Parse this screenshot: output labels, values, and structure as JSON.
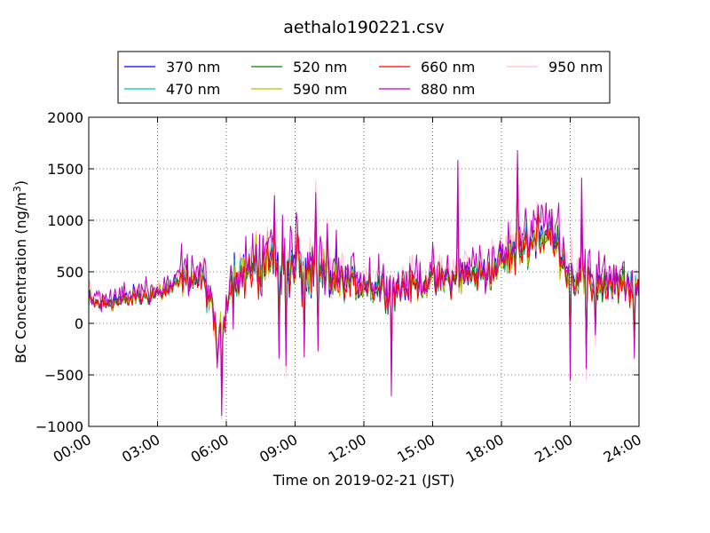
{
  "chart_data": {
    "type": "line",
    "title": "aethalo190221.csv",
    "xlabel": "Time on 2019-02-21 (JST)",
    "ylabel_main": "BC Concentration (ng/m",
    "ylabel_sup": "3",
    "ylabel_tail": ")",
    "x_range_hours": [
      0,
      24
    ],
    "ylim": [
      -1000,
      2000
    ],
    "x_ticks": [
      {
        "h": 0,
        "label": "00:00"
      },
      {
        "h": 3,
        "label": "03:00"
      },
      {
        "h": 6,
        "label": "06:00"
      },
      {
        "h": 9,
        "label": "09:00"
      },
      {
        "h": 12,
        "label": "12:00"
      },
      {
        "h": 15,
        "label": "15:00"
      },
      {
        "h": 18,
        "label": "18:00"
      },
      {
        "h": 21,
        "label": "21:00"
      },
      {
        "h": 24,
        "label": "24:00"
      }
    ],
    "y_ticks": [
      {
        "v": 2000,
        "label": "2000"
      },
      {
        "v": 1500,
        "label": "1500"
      },
      {
        "v": 1000,
        "label": "1000"
      },
      {
        "v": 500,
        "label": "500"
      },
      {
        "v": 0,
        "label": "0"
      },
      {
        "v": -500,
        "label": "−500"
      },
      {
        "v": -1000,
        "label": "−1000"
      }
    ],
    "grid": true,
    "legend_position": "top-center",
    "series": [
      {
        "name": "370 nm",
        "color": "#0000ff"
      },
      {
        "name": "470 nm",
        "color": "#00bfbf"
      },
      {
        "name": "520 nm",
        "color": "#008000"
      },
      {
        "name": "590 nm",
        "color": "#bfbf00"
      },
      {
        "name": "660 nm",
        "color": "#ff0000"
      },
      {
        "name": "880 nm",
        "color": "#bf00bf"
      },
      {
        "name": "950 nm",
        "color": "#ffc0cb"
      }
    ],
    "base_profile": [
      [
        0.0,
        220
      ],
      [
        0.5,
        200
      ],
      [
        1.0,
        210
      ],
      [
        1.5,
        230
      ],
      [
        2.0,
        250
      ],
      [
        2.5,
        270
      ],
      [
        3.0,
        300
      ],
      [
        3.5,
        330
      ],
      [
        4.0,
        420
      ],
      [
        4.5,
        450
      ],
      [
        5.0,
        420
      ],
      [
        5.3,
        200
      ],
      [
        5.6,
        -150
      ],
      [
        5.9,
        0
      ],
      [
        6.1,
        350
      ],
      [
        6.5,
        480
      ],
      [
        7.0,
        520
      ],
      [
        7.5,
        560
      ],
      [
        8.0,
        620
      ],
      [
        8.5,
        580
      ],
      [
        9.0,
        520
      ],
      [
        9.5,
        480
      ],
      [
        10.0,
        460
      ],
      [
        10.5,
        450
      ],
      [
        11.0,
        420
      ],
      [
        11.5,
        400
      ],
      [
        12.0,
        400
      ],
      [
        12.5,
        350
      ],
      [
        13.0,
        340
      ],
      [
        13.5,
        350
      ],
      [
        14.0,
        380
      ],
      [
        14.5,
        400
      ],
      [
        15.0,
        420
      ],
      [
        15.5,
        430
      ],
      [
        16.0,
        450
      ],
      [
        16.5,
        470
      ],
      [
        17.0,
        480
      ],
      [
        17.5,
        500
      ],
      [
        18.0,
        600
      ],
      [
        18.5,
        700
      ],
      [
        19.0,
        800
      ],
      [
        19.5,
        850
      ],
      [
        20.0,
        880
      ],
      [
        20.5,
        750
      ],
      [
        21.0,
        500
      ],
      [
        21.5,
        420
      ],
      [
        22.0,
        380
      ],
      [
        22.5,
        400
      ],
      [
        23.0,
        380
      ],
      [
        23.5,
        350
      ],
      [
        24.0,
        330
      ]
    ],
    "spikes": [
      {
        "h": 5.6,
        "v": -450
      },
      {
        "h": 5.8,
        "v": -900
      },
      {
        "h": 7.6,
        "v": 900
      },
      {
        "h": 8.1,
        "v": 1300
      },
      {
        "h": 8.3,
        "v": -300
      },
      {
        "h": 8.6,
        "v": -500
      },
      {
        "h": 9.1,
        "v": 1000
      },
      {
        "h": 9.4,
        "v": -320
      },
      {
        "h": 9.9,
        "v": 1380
      },
      {
        "h": 10.0,
        "v": -240
      },
      {
        "h": 10.4,
        "v": 1050
      },
      {
        "h": 13.2,
        "v": -700
      },
      {
        "h": 16.1,
        "v": 1540
      },
      {
        "h": 18.7,
        "v": 1750
      },
      {
        "h": 19.6,
        "v": 1150
      },
      {
        "h": 20.2,
        "v": 1140
      },
      {
        "h": 21.0,
        "v": -520
      },
      {
        "h": 21.5,
        "v": 1420
      },
      {
        "h": 21.7,
        "v": -560
      },
      {
        "h": 22.1,
        "v": -200
      },
      {
        "h": 23.8,
        "v": -330
      }
    ]
  }
}
